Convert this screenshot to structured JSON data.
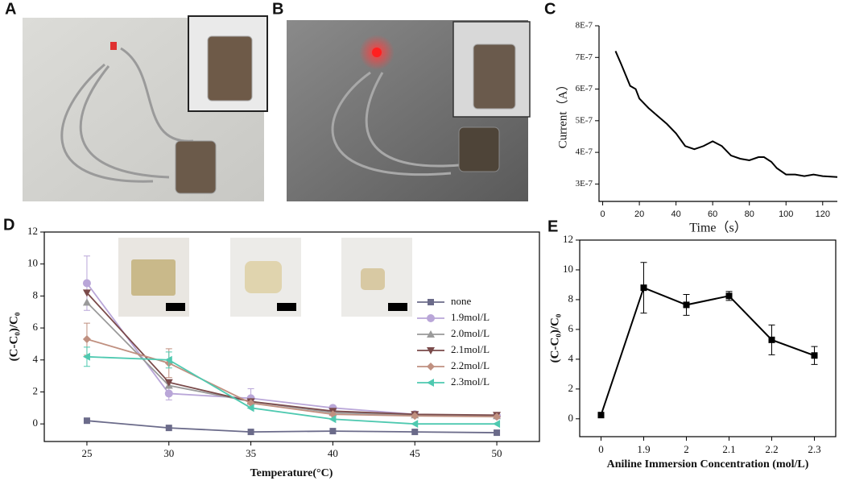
{
  "panel_labels": [
    "A",
    "B",
    "C",
    "D",
    "E"
  ],
  "chart_data": [
    {
      "type": "line",
      "xlabel": "Time（s）",
      "ylabel": "Current（A）",
      "x": [
        7,
        10,
        15,
        18,
        20,
        25,
        30,
        35,
        40,
        45,
        50,
        55,
        60,
        65,
        70,
        75,
        80,
        85,
        88,
        92,
        95,
        100,
        105,
        110,
        115,
        120,
        128
      ],
      "series": [
        {
          "color": "#000000",
          "values": [
            7.2e-07,
            6.8e-07,
            6.1e-07,
            6e-07,
            5.7e-07,
            5.4e-07,
            5.15e-07,
            4.9e-07,
            4.6e-07,
            4.2e-07,
            4.1e-07,
            4.2e-07,
            4.35e-07,
            4.2e-07,
            3.9e-07,
            3.8e-07,
            3.75e-07,
            3.85e-07,
            3.85e-07,
            3.7e-07,
            3.5e-07,
            3.3e-07,
            3.3e-07,
            3.25e-07,
            3.3e-07,
            3.25e-07,
            3.22e-07
          ]
        }
      ],
      "xlim": [
        -2,
        128
      ],
      "xticks": [
        0,
        20,
        40,
        60,
        80,
        100,
        120
      ],
      "ylim": [
        2.45e-07,
        8e-07
      ],
      "yticks": [
        {
          "value": 3e-07,
          "label": "3E-7"
        },
        {
          "value": 4e-07,
          "label": "4E-7"
        },
        {
          "value": 5e-07,
          "label": "5E-7"
        },
        {
          "value": 6e-07,
          "label": "6E-7"
        },
        {
          "value": 7e-07,
          "label": "7E-7"
        },
        {
          "value": 8e-07,
          "label": "8E-7"
        }
      ]
    },
    {
      "type": "line",
      "xlabel": "Temperature(°C)",
      "ylabel": "(C-C₀)/C₀",
      "x": [
        25,
        30,
        35,
        40,
        45,
        50
      ],
      "series": [
        {
          "name": "none",
          "color": "#6b6b8a",
          "marker": "square",
          "values": [
            0.2,
            -0.25,
            -0.5,
            -0.45,
            -0.5,
            -0.55
          ]
        },
        {
          "name": "1.9mol/L",
          "color": "#b9a6d8",
          "marker": "circle",
          "values": [
            8.8,
            1.9,
            1.6,
            1.0,
            0.6,
            0.5
          ],
          "errors": [
            1.7,
            0.4,
            0.6,
            null,
            null,
            null
          ]
        },
        {
          "name": "2.0mol/L",
          "color": "#9a9a9a",
          "marker": "triangle-up",
          "values": [
            7.6,
            2.4,
            1.4,
            0.7,
            0.55,
            0.5
          ]
        },
        {
          "name": "2.1mol/L",
          "color": "#7a4a4a",
          "marker": "triangle-down",
          "values": [
            8.2,
            2.6,
            1.4,
            0.8,
            0.6,
            0.55
          ]
        },
        {
          "name": "2.2mol/L",
          "color": "#c09080",
          "marker": "diamond",
          "values": [
            5.3,
            3.8,
            1.3,
            0.6,
            0.5,
            0.45
          ],
          "errors": [
            1.0,
            0.9,
            null,
            null,
            null,
            null
          ]
        },
        {
          "name": "2.3mol/L",
          "color": "#4ec9b0",
          "marker": "triangle-left",
          "values": [
            4.2,
            4.0,
            1.0,
            0.3,
            0.0,
            0.0
          ],
          "errors": [
            0.6,
            0.5,
            null,
            null,
            null,
            null
          ]
        }
      ],
      "xlim": [
        22.4,
        52.6
      ],
      "xticks": [
        25,
        30,
        35,
        40,
        45,
        50
      ],
      "ylim": [
        -1.1,
        12
      ],
      "yticks": [
        0,
        2,
        4,
        6,
        8,
        10,
        12
      ]
    },
    {
      "type": "line",
      "xlabel": "Aniline Immersion Concentration (mol/L)",
      "ylabel": "(C-C₀)/C₀",
      "categories": [
        "0",
        "1.9",
        "2",
        "2.1",
        "2.2",
        "2.3"
      ],
      "series": [
        {
          "color": "#000000",
          "marker": "square",
          "values": [
            0.25,
            8.8,
            7.65,
            8.25,
            5.3,
            4.25
          ],
          "errors": [
            null,
            1.7,
            0.7,
            0.3,
            1.0,
            0.6
          ]
        }
      ],
      "ylim": [
        -1.2,
        12
      ],
      "yticks": [
        0,
        2,
        4,
        6,
        8,
        10,
        12
      ]
    }
  ]
}
